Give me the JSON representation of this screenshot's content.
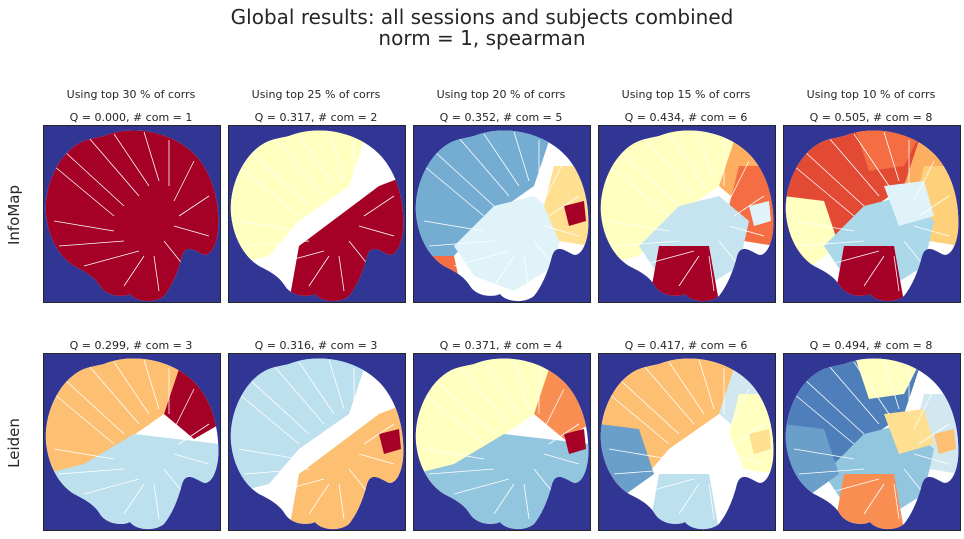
{
  "figure": {
    "title_line1": "Global results: all sessions and subjects combined",
    "title_line2": "norm = 1,   spearman"
  },
  "chart_data": {
    "type": "heatmap",
    "title": "Global results: all sessions and subjects combined\nnorm = 1,   spearman",
    "row_labels": [
      "InfoMap",
      "Leiden"
    ],
    "column_titles": [
      "Using top 30 % of corrs",
      "Using top 25 % of corrs",
      "Using top 20 % of corrs",
      "Using top 15 % of corrs",
      "Using top 10 % of corrs"
    ],
    "top_percent": [
      30,
      25,
      20,
      15,
      10
    ],
    "background_color": "#313695",
    "colormap": "RdYlBu_r",
    "panels": [
      [
        {
          "label": "Q = 0.000,  # com = 1",
          "Q": 0.0,
          "n_com": 1,
          "regions": [
            {
              "region": "whole",
              "color": "#a50026"
            }
          ]
        },
        {
          "label": "Q = 0.317,  # com = 2",
          "Q": 0.317,
          "n_com": 2,
          "regions": [
            {
              "region": "upper-left",
              "color": "#ffffbf"
            },
            {
              "region": "lower-right",
              "color": "#a50026"
            }
          ]
        },
        {
          "label": "Q = 0.352,  # com = 5",
          "Q": 0.352,
          "n_com": 5,
          "regions": [
            {
              "region": "upper-left",
              "color": "#74add1"
            },
            {
              "region": "center",
              "color": "#e0f3f8"
            },
            {
              "region": "right",
              "color": "#fee090"
            },
            {
              "region": "bottom-left",
              "color": "#f46d43"
            },
            {
              "region": "small",
              "color": "#a50026"
            }
          ]
        },
        {
          "label": "Q = 0.434,  # com = 6",
          "Q": 0.434,
          "n_com": 6,
          "regions": [
            {
              "region": "upper-left",
              "color": "#ffffbf"
            },
            {
              "region": "upper-right",
              "color": "#fdae61"
            },
            {
              "region": "right",
              "color": "#f46d43"
            },
            {
              "region": "center",
              "color": "#c6e4ef"
            },
            {
              "region": "bottom",
              "color": "#a50026"
            },
            {
              "region": "small",
              "color": "#e0f3f8"
            }
          ]
        },
        {
          "label": "Q = 0.505,  # com = 8",
          "Q": 0.505,
          "n_com": 8,
          "regions": [
            {
              "region": "upper-left",
              "color": "#e34a33"
            },
            {
              "region": "top",
              "color": "#f46d43"
            },
            {
              "region": "upper-right",
              "color": "#fdae61"
            },
            {
              "region": "right",
              "color": "#fed07a"
            },
            {
              "region": "left",
              "color": "#ffffbf"
            },
            {
              "region": "center",
              "color": "#abd9e9"
            },
            {
              "region": "center-right",
              "color": "#e0f3f8"
            },
            {
              "region": "bottom",
              "color": "#a50026"
            }
          ]
        }
      ],
      [
        {
          "label": "Q = 0.299,  # com = 3",
          "Q": 0.299,
          "n_com": 3,
          "regions": [
            {
              "region": "upper-left",
              "color": "#fdbf71"
            },
            {
              "region": "upper-right",
              "color": "#a50026"
            },
            {
              "region": "lower",
              "color": "#bde0ee"
            }
          ]
        },
        {
          "label": "Q = 0.316,  # com = 3",
          "Q": 0.316,
          "n_com": 3,
          "regions": [
            {
              "region": "upper-left",
              "color": "#bde0ee"
            },
            {
              "region": "lower-right",
              "color": "#fdbf71"
            },
            {
              "region": "small",
              "color": "#a50026"
            }
          ]
        },
        {
          "label": "Q = 0.371,  # com = 4",
          "Q": 0.371,
          "n_com": 4,
          "regions": [
            {
              "region": "upper-left",
              "color": "#ffffbf"
            },
            {
              "region": "upper-right",
              "color": "#f98e52"
            },
            {
              "region": "lower",
              "color": "#92c5de"
            },
            {
              "region": "small",
              "color": "#a50026"
            }
          ]
        },
        {
          "label": "Q = 0.417,  # com = 6",
          "Q": 0.417,
          "n_com": 6,
          "regions": [
            {
              "region": "upper-left",
              "color": "#fdbf71"
            },
            {
              "region": "upper-right",
              "color": "#d1e8f1"
            },
            {
              "region": "left",
              "color": "#6a9fca"
            },
            {
              "region": "right",
              "color": "#ffffbf"
            },
            {
              "region": "bottom",
              "color": "#bde0ee"
            },
            {
              "region": "small",
              "color": "#fee090"
            }
          ]
        },
        {
          "label": "Q = 0.494,  # com = 8",
          "Q": 0.494,
          "n_com": 8,
          "regions": [
            {
              "region": "upper-left",
              "color": "#4f7fbb"
            },
            {
              "region": "top",
              "color": "#ffffbf"
            },
            {
              "region": "right",
              "color": "#d1e8f1"
            },
            {
              "region": "center",
              "color": "#92c5de"
            },
            {
              "region": "center-right",
              "color": "#fee090"
            },
            {
              "region": "left",
              "color": "#6a9fca"
            },
            {
              "region": "small",
              "color": "#fdbf71"
            },
            {
              "region": "bottom",
              "color": "#f98e52"
            }
          ]
        }
      ]
    ]
  }
}
